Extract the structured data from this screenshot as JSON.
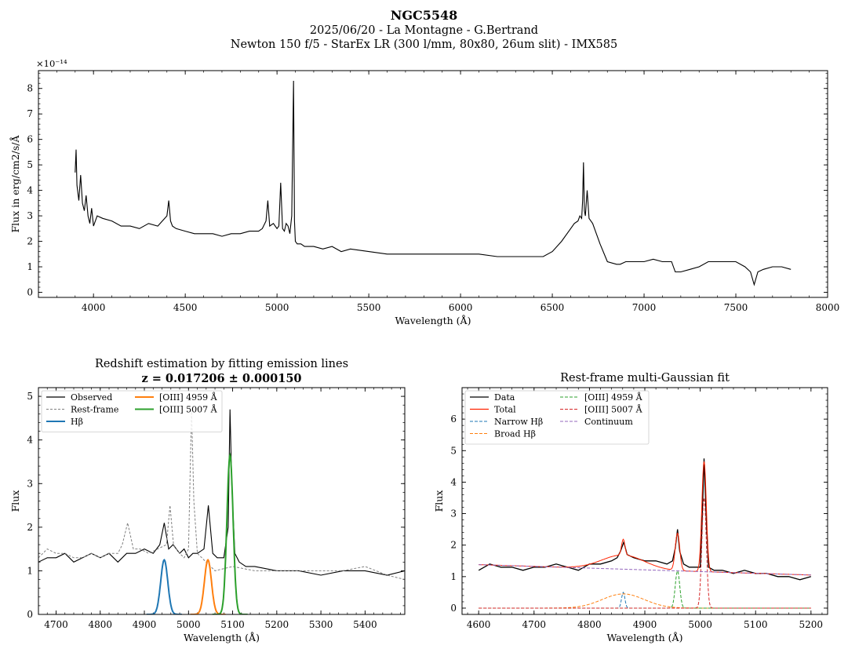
{
  "header": {
    "title": "NGC5548",
    "subtitle1": "2025/06/20 - La Montagne - G.Bertrand",
    "subtitle2": "Newton 150 f/5 - StarEx LR (300 l/mm, 80x80, 26um slit) - IMX585"
  },
  "colors": {
    "black": "#000000",
    "gray": "#808080",
    "blue": "#1f77b4",
    "orange": "#ff7f0e",
    "green": "#2ca02c",
    "red": "#d62728",
    "purple": "#9467bd",
    "total_red": "#ff2200"
  },
  "chart_data": [
    {
      "id": "spectrum",
      "type": "line",
      "title": "",
      "xlabel": "Wavelength (Å)",
      "ylabel": "Flux in erg/cm2/s/Å",
      "yexp": "×10⁻¹⁴",
      "xlim": [
        3700,
        8000
      ],
      "ylim": [
        -0.2,
        8.7
      ],
      "xticks": [
        4000,
        4500,
        5000,
        5500,
        6000,
        6500,
        7000,
        7500,
        8000
      ],
      "yticks": [
        0,
        1,
        2,
        3,
        4,
        5,
        6,
        7,
        8
      ],
      "series": [
        {
          "name": "spectrum",
          "color": "#000000",
          "x": [
            3900,
            3905,
            3910,
            3920,
            3930,
            3940,
            3950,
            3960,
            3970,
            3980,
            3990,
            4000,
            4020,
            4050,
            4100,
            4150,
            4200,
            4250,
            4300,
            4350,
            4400,
            4410,
            4420,
            4430,
            4450,
            4500,
            4550,
            4600,
            4650,
            4700,
            4750,
            4800,
            4850,
            4900,
            4920,
            4940,
            4950,
            4960,
            4980,
            5000,
            5010,
            5020,
            5030,
            5040,
            5050,
            5060,
            5070,
            5080,
            5090,
            5095,
            5100,
            5110,
            5130,
            5150,
            5200,
            5250,
            5300,
            5350,
            5400,
            5500,
            5600,
            5700,
            5800,
            5900,
            6000,
            6100,
            6200,
            6300,
            6400,
            6450,
            6500,
            6550,
            6600,
            6620,
            6640,
            6650,
            6660,
            6665,
            6670,
            6675,
            6680,
            6690,
            6700,
            6720,
            6740,
            6760,
            6800,
            6850,
            6870,
            6900,
            6950,
            7000,
            7050,
            7100,
            7150,
            7170,
            7200,
            7250,
            7300,
            7350,
            7400,
            7450,
            7500,
            7550,
            7580,
            7600,
            7620,
            7650,
            7700,
            7750,
            7800
          ],
          "y": [
            4.7,
            5.6,
            4.2,
            3.6,
            4.6,
            3.5,
            3.2,
            3.8,
            3.0,
            2.7,
            3.3,
            2.6,
            3.0,
            2.9,
            2.8,
            2.6,
            2.6,
            2.5,
            2.7,
            2.6,
            3.0,
            3.6,
            2.8,
            2.6,
            2.5,
            2.4,
            2.3,
            2.3,
            2.3,
            2.2,
            2.3,
            2.3,
            2.4,
            2.4,
            2.5,
            2.8,
            3.6,
            2.6,
            2.7,
            2.5,
            2.6,
            4.3,
            2.5,
            2.4,
            2.7,
            2.6,
            2.3,
            3.0,
            8.3,
            2.8,
            2.0,
            1.9,
            1.9,
            1.8,
            1.8,
            1.7,
            1.8,
            1.6,
            1.7,
            1.6,
            1.5,
            1.5,
            1.5,
            1.5,
            1.5,
            1.5,
            1.4,
            1.4,
            1.4,
            1.4,
            1.6,
            2.0,
            2.5,
            2.7,
            2.8,
            3.0,
            2.9,
            3.6,
            5.1,
            3.2,
            3.0,
            4.0,
            2.9,
            2.7,
            2.3,
            1.9,
            1.2,
            1.1,
            1.1,
            1.2,
            1.2,
            1.2,
            1.3,
            1.2,
            1.2,
            0.8,
            0.8,
            0.9,
            1.0,
            1.2,
            1.2,
            1.2,
            1.2,
            1.0,
            0.8,
            0.3,
            0.8,
            0.9,
            1.0,
            1.0,
            0.9
          ]
        }
      ]
    },
    {
      "id": "redshift",
      "type": "line",
      "title": "Redshift estimation by fitting emission lines",
      "title2": "z = 0.017206 ± 0.000150",
      "xlabel": "Wavelength (Å)",
      "ylabel": "Flux",
      "xlim": [
        4660,
        5490
      ],
      "ylim": [
        0,
        5.2
      ],
      "xticks": [
        4700,
        4800,
        4900,
        5000,
        5100,
        5200,
        5300,
        5400
      ],
      "yticks": [
        0,
        1,
        2,
        3,
        4,
        5
      ],
      "legend": [
        {
          "label": "Observed",
          "color": "#000000",
          "dash": ""
        },
        {
          "label": "Rest-frame",
          "color": "#808080",
          "dash": "3,2"
        },
        {
          "label": "Hβ",
          "color": "#1f77b4",
          "dash": ""
        },
        {
          "label": "[OIII] 4959 Å",
          "color": "#ff7f0e",
          "dash": ""
        },
        {
          "label": "[OIII] 5007 Å",
          "color": "#2ca02c",
          "dash": ""
        }
      ],
      "series": [
        {
          "name": "Observed",
          "color": "#000000",
          "dash": "",
          "width": 1.1,
          "x": [
            4660,
            4680,
            4700,
            4720,
            4740,
            4760,
            4780,
            4800,
            4820,
            4840,
            4860,
            4880,
            4900,
            4920,
            4935,
            4945,
            4955,
            4965,
            4980,
            4990,
            5000,
            5010,
            5020,
            5035,
            5045,
            5055,
            5065,
            5080,
            5090,
            5094,
            5098,
            5105,
            5115,
            5130,
            5150,
            5200,
            5250,
            5300,
            5350,
            5400,
            5450,
            5490
          ],
          "y": [
            1.2,
            1.3,
            1.3,
            1.4,
            1.2,
            1.3,
            1.4,
            1.3,
            1.4,
            1.2,
            1.4,
            1.4,
            1.5,
            1.4,
            1.6,
            2.1,
            1.5,
            1.6,
            1.4,
            1.5,
            1.3,
            1.4,
            1.4,
            1.5,
            2.5,
            1.4,
            1.3,
            1.3,
            2.0,
            4.7,
            3.0,
            1.4,
            1.2,
            1.1,
            1.1,
            1.0,
            1.0,
            0.9,
            1.0,
            1.0,
            0.9,
            1.0
          ]
        },
        {
          "name": "Rest-frame",
          "color": "#808080",
          "dash": "3,2",
          "width": 1.0,
          "x": [
            4660,
            4680,
            4700,
            4720,
            4740,
            4760,
            4780,
            4800,
            4820,
            4840,
            4850,
            4862,
            4875,
            4890,
            4910,
            4930,
            4950,
            4958,
            4966,
            4980,
            4990,
            5000,
            5007,
            5012,
            5020,
            5040,
            5060,
            5100,
            5150,
            5200,
            5250,
            5300,
            5350,
            5400,
            5450,
            5490
          ],
          "y": [
            1.3,
            1.5,
            1.4,
            1.4,
            1.3,
            1.3,
            1.4,
            1.3,
            1.4,
            1.4,
            1.6,
            2.1,
            1.5,
            1.5,
            1.4,
            1.5,
            1.6,
            2.5,
            1.6,
            1.4,
            1.3,
            1.5,
            4.7,
            2.6,
            1.4,
            1.2,
            1.0,
            1.1,
            1.0,
            1.0,
            1.0,
            1.0,
            1.0,
            1.1,
            0.9,
            0.8
          ]
        },
        {
          "name": "Hβ",
          "color": "#1f77b4",
          "dash": "",
          "width": 2.0,
          "gauss": {
            "amp": 1.25,
            "mu": 4945,
            "sigma": 8,
            "from": 4905,
            "to": 4985
          }
        },
        {
          "name": "[OIII] 4959 Å",
          "color": "#ff7f0e",
          "dash": "",
          "width": 2.0,
          "gauss": {
            "amp": 1.25,
            "mu": 5044,
            "sigma": 8,
            "from": 5004,
            "to": 5084
          }
        },
        {
          "name": "[OIII] 5007 Å",
          "color": "#2ca02c",
          "dash": "",
          "width": 2.0,
          "gauss": {
            "amp": 3.65,
            "mu": 5094,
            "sigma": 7,
            "from": 5054,
            "to": 5134
          }
        }
      ]
    },
    {
      "id": "restframe",
      "type": "line",
      "title": "Rest-frame multi-Gaussian fit",
      "xlabel": "Wavelength (Å)",
      "ylabel": "Flux",
      "xlim": [
        4570,
        5230
      ],
      "ylim": [
        -0.2,
        7.0
      ],
      "xticks": [
        4600,
        4700,
        4800,
        4900,
        5000,
        5100,
        5200
      ],
      "yticks": [
        0,
        1,
        2,
        3,
        4,
        5,
        6
      ],
      "legend": [
        {
          "label": "Data",
          "color": "#000000",
          "dash": ""
        },
        {
          "label": "Total",
          "color": "#ff2200",
          "dash": ""
        },
        {
          "label": "Narrow Hβ",
          "color": "#1f77b4",
          "dash": "4,2"
        },
        {
          "label": "Broad Hβ",
          "color": "#ff7f0e",
          "dash": "4,2"
        },
        {
          "label": "[OIII] 4959 Å",
          "color": "#2ca02c",
          "dash": "4,2"
        },
        {
          "label": "[OIII] 5007 Å",
          "color": "#d62728",
          "dash": "4,2"
        },
        {
          "label": "Continuum",
          "color": "#9467bd",
          "dash": "4,2"
        }
      ],
      "series": [
        {
          "name": "Data",
          "color": "#000000",
          "dash": "",
          "width": 1.3,
          "x": [
            4600,
            4620,
            4640,
            4660,
            4680,
            4700,
            4720,
            4740,
            4760,
            4780,
            4800,
            4820,
            4840,
            4850,
            4856,
            4862,
            4868,
            4880,
            4900,
            4920,
            4940,
            4950,
            4955,
            4959,
            4963,
            4970,
            4980,
            4990,
            5000,
            5003,
            5007,
            5011,
            5015,
            5025,
            5040,
            5060,
            5080,
            5100,
            5120,
            5140,
            5160,
            5180,
            5200
          ],
          "y": [
            1.2,
            1.4,
            1.3,
            1.3,
            1.2,
            1.3,
            1.3,
            1.4,
            1.3,
            1.2,
            1.4,
            1.4,
            1.5,
            1.6,
            1.8,
            2.1,
            1.7,
            1.6,
            1.5,
            1.5,
            1.4,
            1.5,
            1.9,
            2.5,
            1.8,
            1.4,
            1.3,
            1.3,
            1.3,
            2.5,
            4.75,
            2.8,
            1.3,
            1.2,
            1.2,
            1.1,
            1.2,
            1.1,
            1.1,
            1.0,
            1.0,
            0.9,
            1.0
          ]
        },
        {
          "name": "Total",
          "color": "#ff2200",
          "dash": "",
          "width": 1.0,
          "composite": true
        },
        {
          "name": "Narrow Hβ",
          "color": "#1f77b4",
          "dash": "4,2",
          "width": 1.0,
          "gauss": {
            "amp": 0.5,
            "mu": 4861,
            "sigma": 3,
            "from": 4600,
            "to": 5200
          }
        },
        {
          "name": "Broad Hβ",
          "color": "#ff7f0e",
          "dash": "4,2",
          "width": 1.0,
          "gauss": {
            "amp": 0.45,
            "mu": 4861,
            "sigma": 38,
            "from": 4600,
            "to": 5200
          }
        },
        {
          "name": "[OIII] 4959 Å",
          "color": "#2ca02c",
          "dash": "4,2",
          "width": 1.0,
          "gauss": {
            "amp": 1.18,
            "mu": 4959,
            "sigma": 4,
            "from": 4600,
            "to": 5200
          }
        },
        {
          "name": "[OIII] 5007 Å",
          "color": "#d62728",
          "dash": "4,2",
          "width": 1.0,
          "gauss": {
            "amp": 3.5,
            "mu": 5007,
            "sigma": 4,
            "from": 4600,
            "to": 5200
          }
        },
        {
          "name": "Continuum",
          "color": "#9467bd",
          "dash": "4,2",
          "width": 1.0,
          "linear": {
            "from": 4600,
            "to": 5200,
            "y0": 1.38,
            "y1": 1.05
          }
        }
      ]
    }
  ]
}
